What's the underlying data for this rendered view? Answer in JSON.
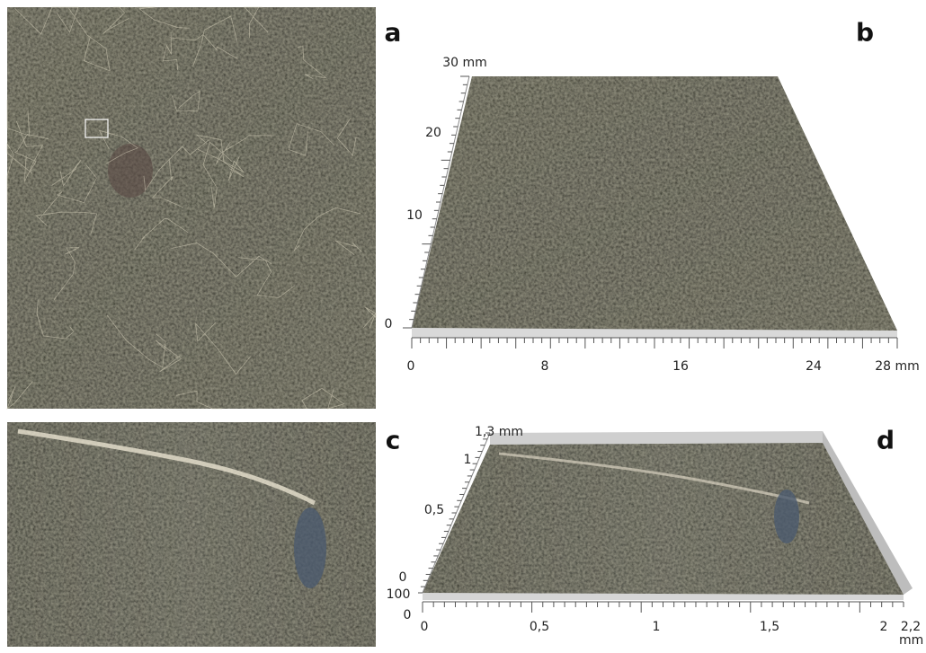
{
  "panels": [
    {
      "label": "a"
    },
    {
      "label": "b",
      "axes": {
        "y_ticks": [
          "30 mm",
          "20",
          "10",
          "0"
        ],
        "x_ticks": [
          "0",
          "8",
          "16",
          "24",
          "28 mm"
        ]
      }
    },
    {
      "label": "c"
    },
    {
      "label": "d",
      "axes": {
        "z_ticks": [
          "1,3 mm",
          "1",
          "0,5",
          "0"
        ],
        "y_ticks": [
          "100",
          "0"
        ],
        "x_ticks": [
          "0",
          "0,5",
          "1",
          "1,5",
          "2",
          "2,2 mm"
        ]
      }
    }
  ]
}
